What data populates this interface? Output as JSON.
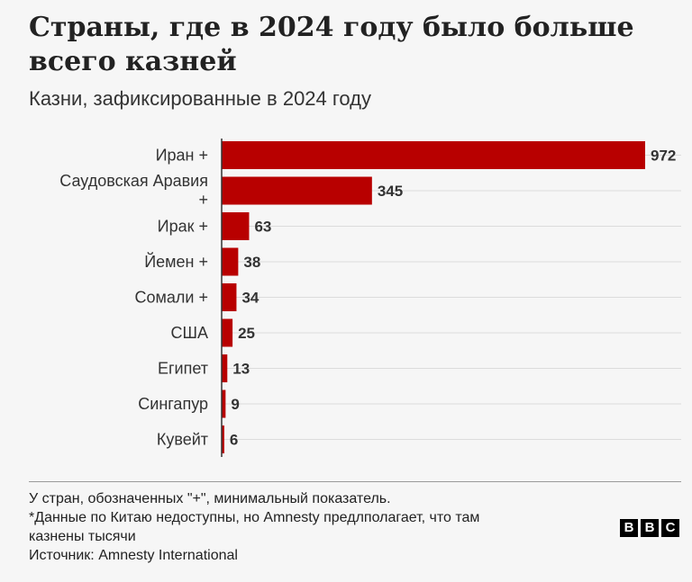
{
  "header": {
    "title": "Страны, где в 2024 году было больше всего казней",
    "subtitle": "Казни, зафиксированные в 2024 году"
  },
  "chart_data": {
    "type": "bar",
    "orientation": "horizontal",
    "categories": [
      "Иран +",
      "Саудовская Аравия +",
      "Ирак +",
      "Йемен +",
      "Сомали +",
      "США",
      "Египет",
      "Сингапур",
      "Кувейт"
    ],
    "category_lines": [
      [
        "Иран +"
      ],
      [
        "Саудовская Аравия",
        "+"
      ],
      [
        "Ирак +"
      ],
      [
        "Йемен +"
      ],
      [
        "Сомали +"
      ],
      [
        "США"
      ],
      [
        "Египет"
      ],
      [
        "Сингапур"
      ],
      [
        "Кувейт"
      ]
    ],
    "values": [
      972,
      345,
      63,
      38,
      34,
      25,
      13,
      9,
      6
    ],
    "data_labels": [
      "972",
      "345",
      "63",
      "38",
      "34",
      "25",
      "13",
      "9",
      "6"
    ],
    "xlim": [
      0,
      972
    ],
    "grid": true,
    "bar_color": "#b80000"
  },
  "footer": {
    "note": "У стран, обозначенных \"+\", минимальный показатель.",
    "china_note_line1": "*Данные по Китаю недоступны, но Amnesty предлполагает, что там",
    "china_note_line2": "казнены тысячи",
    "source": "Источник: Amnesty International"
  },
  "logo": {
    "letters": [
      "B",
      "B",
      "C"
    ]
  }
}
